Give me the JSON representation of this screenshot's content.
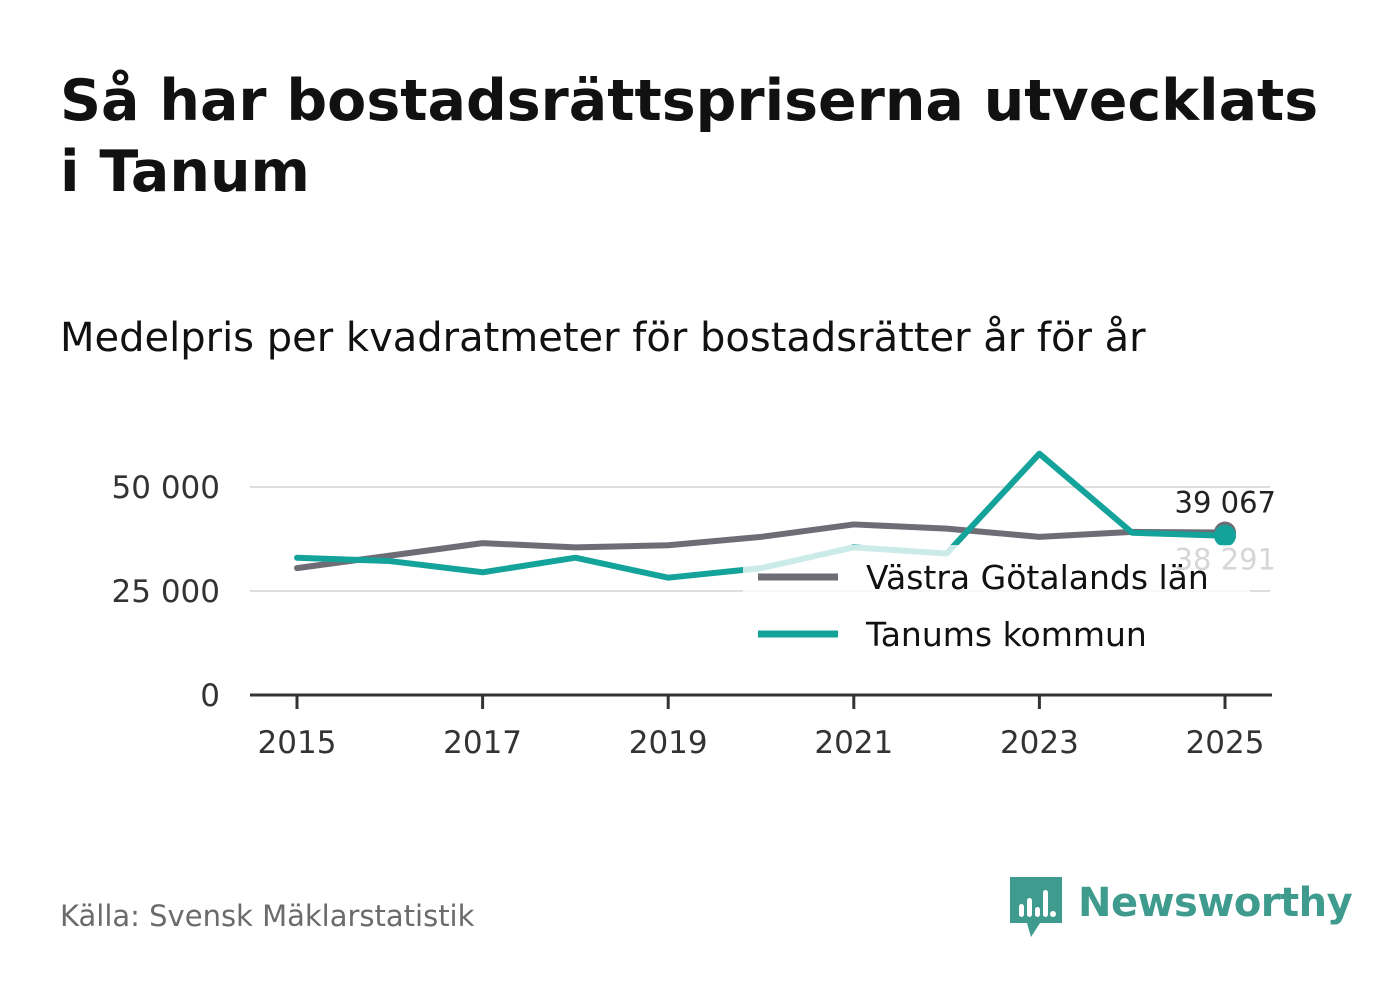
{
  "title": "Så har bostadsrättspriserna utvecklats i Tanum",
  "subtitle": "Medelpris per kvadratmeter för bostadsrätter år för år",
  "source": "Källa: Svensk Mäklarstatistik",
  "brand": {
    "name": "Newsworthy",
    "icon": "newsworthy-logo-icon",
    "color": "#3f9b8d"
  },
  "chart_data": {
    "type": "line",
    "title": "Medelpris per kvadratmeter för bostadsrätter år för år",
    "x": [
      2015,
      2016,
      2017,
      2018,
      2019,
      2020,
      2021,
      2022,
      2023,
      2024,
      2025
    ],
    "x_ticks": [
      2015,
      2017,
      2019,
      2021,
      2023,
      2025
    ],
    "x_tick_labels": [
      "2015",
      "2017",
      "2019",
      "2021",
      "2023",
      "2025"
    ],
    "y_ticks": [
      0,
      25000,
      50000
    ],
    "y_tick_labels": [
      "0",
      "25 000",
      "50 000"
    ],
    "ylim": [
      0,
      50000
    ],
    "xlabel": "",
    "ylabel": "",
    "grid": true,
    "legend_position": "right",
    "series": [
      {
        "name": "Västra Götalands län",
        "color": "#6e6d76",
        "values": [
          30500,
          33500,
          36500,
          35500,
          36000,
          38000,
          41000,
          40000,
          38000,
          39200,
          39067
        ],
        "end_label": "39 067"
      },
      {
        "name": "Tanums kommun",
        "color": "#14a39a",
        "values": [
          33000,
          32200,
          29500,
          33000,
          28200,
          30500,
          35500,
          34000,
          58000,
          39000,
          38291
        ],
        "end_label": "38 291"
      }
    ]
  }
}
